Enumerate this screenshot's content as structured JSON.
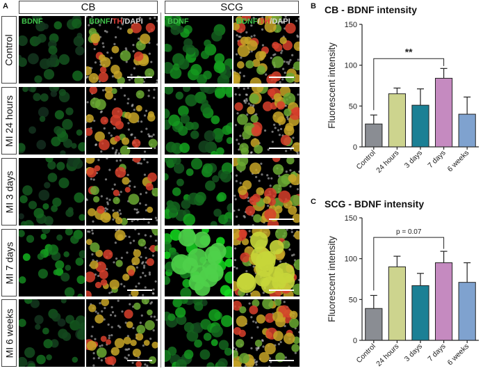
{
  "panel_letters": {
    "a": "A",
    "b": "B",
    "c": "C"
  },
  "micrographs": {
    "groups": [
      "CB",
      "SCG"
    ],
    "rows": [
      "Control",
      "MI 24 hours",
      "MI 3 days",
      "MI 7 days",
      "MI 6 weeks"
    ],
    "channel_labels": {
      "single": "BDNF",
      "merge_bdnf": "BDNF",
      "merge_sep1": "/",
      "merge_th": "TH",
      "merge_sep2": "/",
      "merge_dapi": "DAPI"
    }
  },
  "colors": {
    "Control": "#8a8d93",
    "24 hours": "#cdd48e",
    "3 days": "#1b8095",
    "7 days": "#c58ac0",
    "6 weeks": "#7fa2cf",
    "bdnf_green": "#3fc24a",
    "th_red": "#e6403a"
  },
  "chart_data": [
    {
      "type": "bar",
      "title": "CB - BDNF intensity",
      "ylabel": "Fluorescent intensity",
      "categories": [
        "Control",
        "24 hours",
        "3 days",
        "7 days",
        "6 weeks"
      ],
      "values": [
        28,
        65,
        51,
        84,
        40
      ],
      "errors": [
        11,
        7,
        20,
        12,
        21
      ],
      "ylim": [
        0,
        150
      ],
      "yticks": [
        "0",
        "50",
        "100",
        "150"
      ],
      "annotation": {
        "text": "**",
        "from": "Control",
        "to": "7 days",
        "y": 108
      },
      "grid": false
    },
    {
      "type": "bar",
      "title": "SCG - BDNF intensity",
      "ylabel": "Fluorescent intensity",
      "categories": [
        "Control",
        "24 hours",
        "3 days",
        "7 days",
        "6 weeks"
      ],
      "values": [
        39,
        90,
        67,
        95,
        71
      ],
      "errors": [
        16,
        13,
        15,
        14,
        24
      ],
      "ylim": [
        0,
        150
      ],
      "yticks": [
        "0",
        "50",
        "100",
        "150"
      ],
      "annotation": {
        "text": "p = 0.07",
        "from": "Control",
        "to": "7 days",
        "y": 126
      },
      "grid": false
    }
  ]
}
